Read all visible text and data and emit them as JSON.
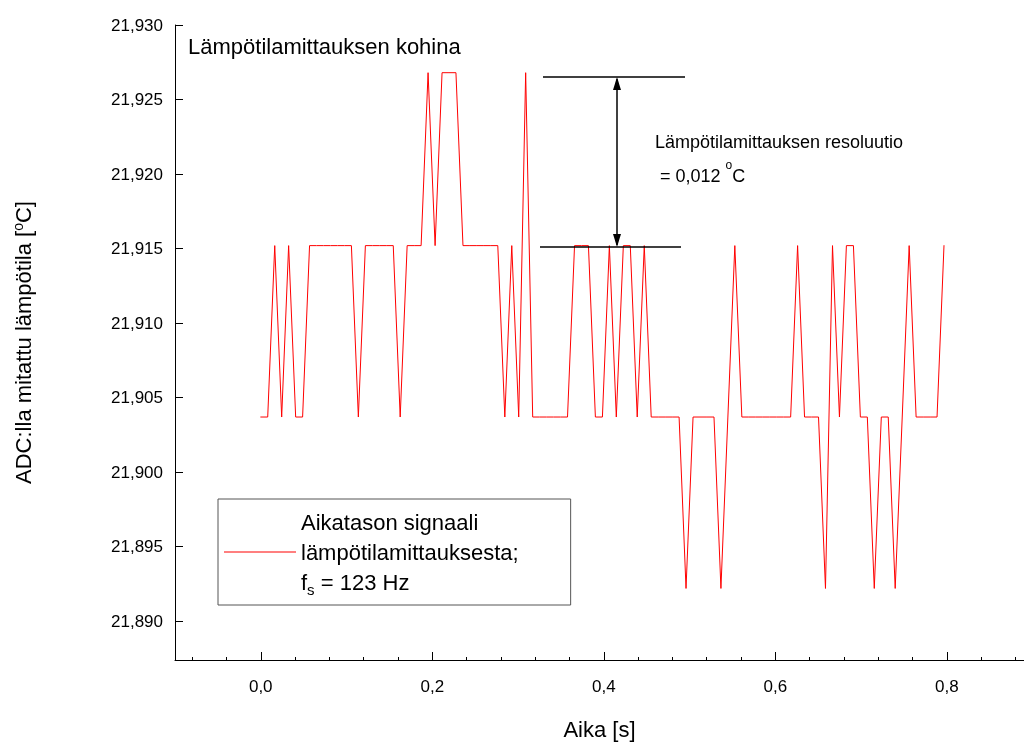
{
  "chart_data": {
    "type": "line",
    "title": "Lämpötilamittauksen kohina",
    "xlabel": "Aika [s]",
    "ylabel": "ADC:lla mitattu lämpötila [$^{o}$C]",
    "annotations": [
      "Lämpötilamittauksen resoluutio\n = 0,012 $^{o}$C"
    ],
    "x": [
      0,
      0.0081,
      0.0163,
      0.0244,
      0.0325,
      0.0407,
      0.0488,
      0.0569,
      0.065,
      0.0732,
      0.0813,
      0.0894,
      0.0976,
      0.1057,
      0.1138,
      0.122,
      0.1301,
      0.1382,
      0.1463,
      0.1545,
      0.1626,
      0.1707,
      0.1789,
      0.187,
      0.1951,
      0.2033,
      0.2114,
      0.2195,
      0.2276,
      0.2358,
      0.2439,
      0.252,
      0.2602,
      0.2683,
      0.2764,
      0.2846,
      0.2927,
      0.3008,
      0.3089,
      0.3171,
      0.3252,
      0.3333,
      0.3415,
      0.3496,
      0.3577,
      0.3659,
      0.374,
      0.3821,
      0.3902,
      0.3984,
      0.4065,
      0.4146,
      0.4228,
      0.4309,
      0.439,
      0.4472,
      0.4553,
      0.4634,
      0.4715,
      0.4797,
      0.4878,
      0.4959,
      0.5041,
      0.5122,
      0.5203,
      0.5285,
      0.5366,
      0.5447,
      0.5528,
      0.561,
      0.5691,
      0.5772,
      0.5854,
      0.5935,
      0.6016,
      0.6098,
      0.6179,
      0.626,
      0.6341,
      0.6423,
      0.6504,
      0.6585,
      0.6667,
      0.6748,
      0.6829,
      0.6911,
      0.6992,
      0.7073,
      0.7154,
      0.7236,
      0.7317,
      0.7398,
      0.748,
      0.7561,
      0.7642,
      0.7724,
      0.7805,
      0.7886,
      0.7967
    ],
    "series": [
      {
        "name": "Aikatason signaali\nlämpötilamittauksesta;\nf$_{s}$ = 123 Hz",
        "color": "#ff0000",
        "values": [
          21.9037,
          21.9037,
          21.9152,
          21.9037,
          21.9152,
          21.9037,
          21.9037,
          21.9152,
          21.9152,
          21.9152,
          21.9152,
          21.9152,
          21.9152,
          21.9152,
          21.9037,
          21.9152,
          21.9152,
          21.9152,
          21.9152,
          21.9152,
          21.9037,
          21.9152,
          21.9152,
          21.9152,
          21.9268,
          21.9152,
          21.9268,
          21.9268,
          21.9268,
          21.9152,
          21.9152,
          21.9152,
          21.9152,
          21.9152,
          21.9152,
          21.9037,
          21.9152,
          21.9037,
          21.9268,
          21.9037,
          21.9037,
          21.9037,
          21.9037,
          21.9037,
          21.9037,
          21.9152,
          21.9152,
          21.9152,
          21.9037,
          21.9037,
          21.9152,
          21.9037,
          21.9152,
          21.9152,
          21.9037,
          21.9152,
          21.9037,
          21.9037,
          21.9037,
          21.9037,
          21.9037,
          21.8922,
          21.9037,
          21.9037,
          21.9037,
          21.9037,
          21.8922,
          21.9037,
          21.9152,
          21.9037,
          21.9037,
          21.9037,
          21.9037,
          21.9037,
          21.9037,
          21.9037,
          21.9037,
          21.9152,
          21.9037,
          21.9037,
          21.9037,
          21.8922,
          21.9152,
          21.9037,
          21.9152,
          21.9152,
          21.9037,
          21.9037,
          21.8922,
          21.9037,
          21.9037,
          21.8922,
          21.9037,
          21.9152,
          21.9037,
          21.9037,
          21.9037,
          21.9037,
          21.9152
        ]
      }
    ],
    "xlim": [
      -0.1,
      0.89
    ],
    "xticks": [
      {
        "value": 0,
        "label": "0,0"
      },
      {
        "value": 0.2,
        "label": "0,2"
      },
      {
        "value": 0.4,
        "label": "0,4"
      },
      {
        "value": 0.6,
        "label": "0,6"
      },
      {
        "value": 0.8,
        "label": "0,8"
      }
    ],
    "ylim": [
      21.8874,
      21.93
    ],
    "yticks": [
      {
        "value": 21.89,
        "label": "21,890"
      },
      {
        "value": 21.895,
        "label": "21,895"
      },
      {
        "value": 21.9,
        "label": "21,900"
      },
      {
        "value": 21.905,
        "label": "21,905"
      },
      {
        "value": 21.91,
        "label": "21,910"
      },
      {
        "value": 21.915,
        "label": "21,915"
      },
      {
        "value": 21.92,
        "label": "21,920"
      },
      {
        "value": 21.925,
        "label": "21,925"
      },
      {
        "value": 21.93,
        "label": "21,930"
      }
    ],
    "grid": false,
    "legend": "bottom left",
    "marker": "none",
    "line_style": "solid"
  }
}
